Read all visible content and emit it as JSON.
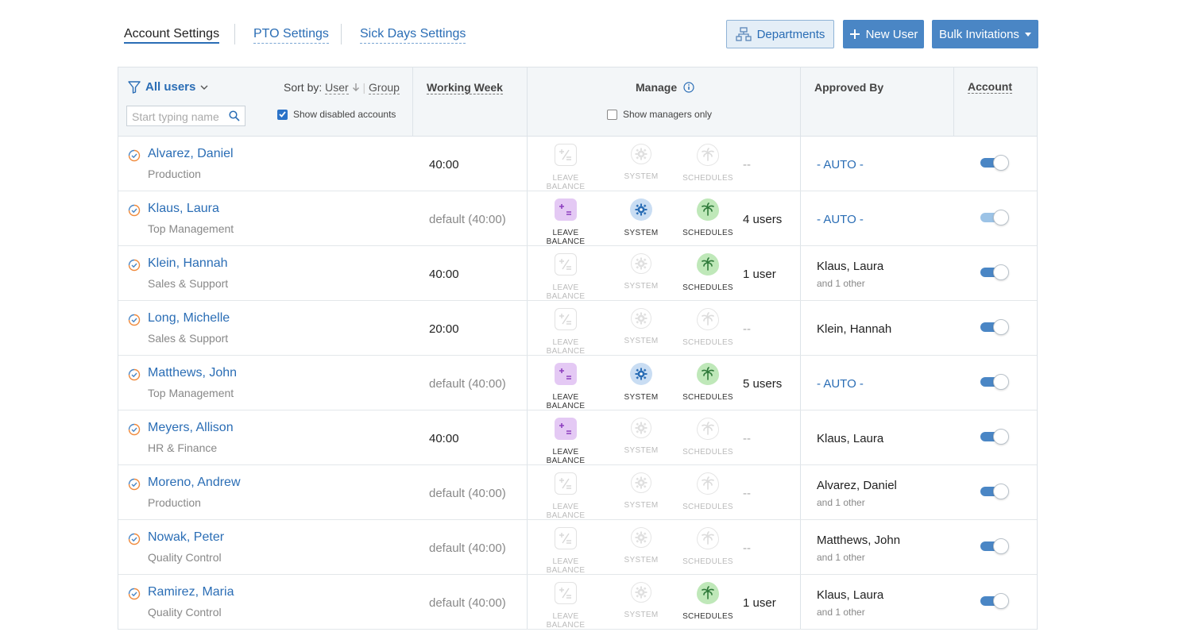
{
  "tabs": [
    {
      "label": "Account Settings",
      "active": true
    },
    {
      "label": "PTO Settings",
      "active": false
    },
    {
      "label": "Sick Days Settings",
      "active": false
    }
  ],
  "buttons": {
    "departments": "Departments",
    "new_user": "New User",
    "bulk_invitations": "Bulk Invitations"
  },
  "filter": {
    "all_users": "All users",
    "sort_by_label": "Sort by:",
    "sort_user": "User",
    "sort_group": "Group",
    "search_placeholder": "Start typing name",
    "show_disabled": "Show disabled accounts",
    "show_disabled_checked": true
  },
  "columns": {
    "working_week": "Working Week",
    "manage": "Manage",
    "show_managers_only": "Show managers only",
    "approved_by": "Approved By",
    "account": "Account"
  },
  "perm_labels": {
    "leave": "LEAVE BALANCE",
    "system": "SYSTEM",
    "schedules": "SCHEDULES"
  },
  "colors": {
    "accent": "#2a6db5",
    "button": "#4a86c5",
    "leave_on": "#e4c9f4",
    "system_on": "#c9ddf3",
    "schedules_on": "#bfe8b9"
  },
  "users": [
    {
      "name": "Alvarez, Daniel",
      "dept": "Production",
      "week": "40:00",
      "leave": false,
      "system": false,
      "schedules": false,
      "manages": "--",
      "approved": "- AUTO -",
      "approved_sub": "",
      "active": true
    },
    {
      "name": "Klaus, Laura",
      "dept": "Top Management",
      "week": "default (40:00)",
      "leave": true,
      "system": true,
      "schedules": true,
      "manages": "4 users",
      "approved": "- AUTO -",
      "approved_sub": "",
      "active": true
    },
    {
      "name": "Klein, Hannah",
      "dept": "Sales & Support",
      "week": "40:00",
      "leave": false,
      "system": false,
      "schedules": true,
      "manages": "1 user",
      "approved": "Klaus, Laura",
      "approved_sub": "and 1 other",
      "active": true
    },
    {
      "name": "Long, Michelle",
      "dept": "Sales & Support",
      "week": "20:00",
      "leave": false,
      "system": false,
      "schedules": false,
      "manages": "--",
      "approved": "Klein, Hannah",
      "approved_sub": "",
      "active": true
    },
    {
      "name": "Matthews, John",
      "dept": "Top Management",
      "week": "default (40:00)",
      "leave": true,
      "system": true,
      "schedules": true,
      "manages": "5 users",
      "approved": "- AUTO -",
      "approved_sub": "",
      "active": true
    },
    {
      "name": "Meyers, Allison",
      "dept": "HR & Finance",
      "week": "40:00",
      "leave": true,
      "system": false,
      "schedules": false,
      "manages": "--",
      "approved": "Klaus, Laura",
      "approved_sub": "",
      "active": true
    },
    {
      "name": "Moreno, Andrew",
      "dept": "Production",
      "week": "default (40:00)",
      "leave": false,
      "system": false,
      "schedules": false,
      "manages": "--",
      "approved": "Alvarez, Daniel",
      "approved_sub": "and 1 other",
      "active": true
    },
    {
      "name": "Nowak, Peter",
      "dept": "Quality Control",
      "week": "default (40:00)",
      "leave": false,
      "system": false,
      "schedules": false,
      "manages": "--",
      "approved": "Matthews, John",
      "approved_sub": "and 1 other",
      "active": true
    },
    {
      "name": "Ramirez, Maria",
      "dept": "Quality Control",
      "week": "default (40:00)",
      "leave": false,
      "system": false,
      "schedules": true,
      "manages": "1 user",
      "approved": "Klaus, Laura",
      "approved_sub": "and 1 other",
      "active": true
    }
  ]
}
